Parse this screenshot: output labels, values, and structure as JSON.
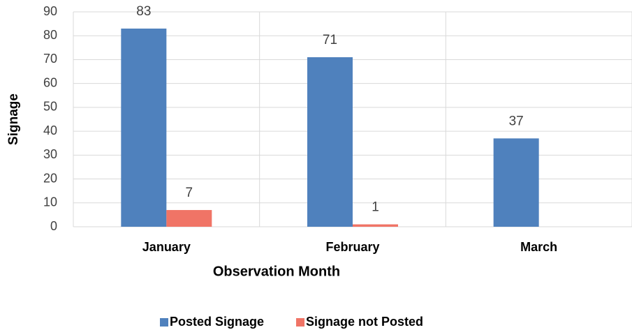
{
  "chart_data": {
    "type": "bar",
    "categories": [
      "January",
      "February",
      "March"
    ],
    "series": [
      {
        "name": "Posted Signage",
        "color": "#4f81bd",
        "values": [
          83,
          71,
          37
        ]
      },
      {
        "name": "Signage not Posted",
        "color": "#f07466",
        "values": [
          7,
          1,
          null
        ]
      }
    ],
    "xlabel": "Observation Month",
    "ylabel": "Signage",
    "ylim": [
      0,
      90
    ],
    "yticks": [
      0,
      10,
      20,
      30,
      40,
      50,
      60,
      70,
      80,
      90
    ],
    "grid": true,
    "legend": "bottom"
  }
}
